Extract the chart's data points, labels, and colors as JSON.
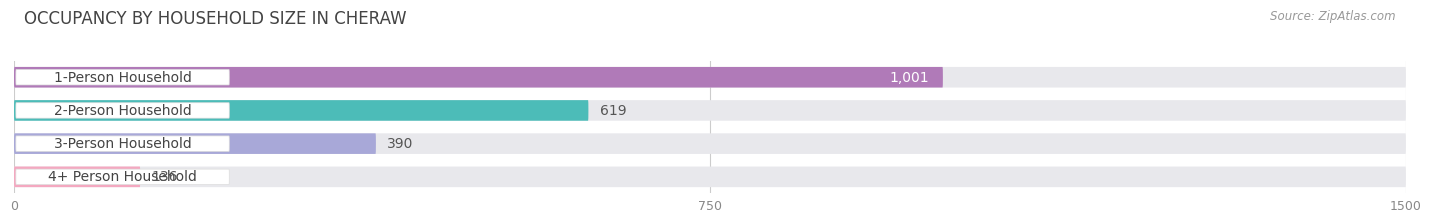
{
  "title": "OCCUPANCY BY HOUSEHOLD SIZE IN CHERAW",
  "source": "Source: ZipAtlas.com",
  "categories": [
    "1-Person Household",
    "2-Person Household",
    "3-Person Household",
    "4+ Person Household"
  ],
  "values": [
    1001,
    619,
    390,
    136
  ],
  "value_labels": [
    "1,001",
    "619",
    "390",
    "136"
  ],
  "bar_colors": [
    "#b07ab8",
    "#4cbcb8",
    "#a8a8d8",
    "#f4a8c0"
  ],
  "xlim": [
    0,
    1500
  ],
  "xticks": [
    0,
    750,
    1500
  ],
  "background_color": "#ffffff",
  "bar_bg_color": "#e8e8ec",
  "title_fontsize": 12,
  "source_fontsize": 8.5,
  "label_fontsize": 10,
  "value_fontsize": 10
}
